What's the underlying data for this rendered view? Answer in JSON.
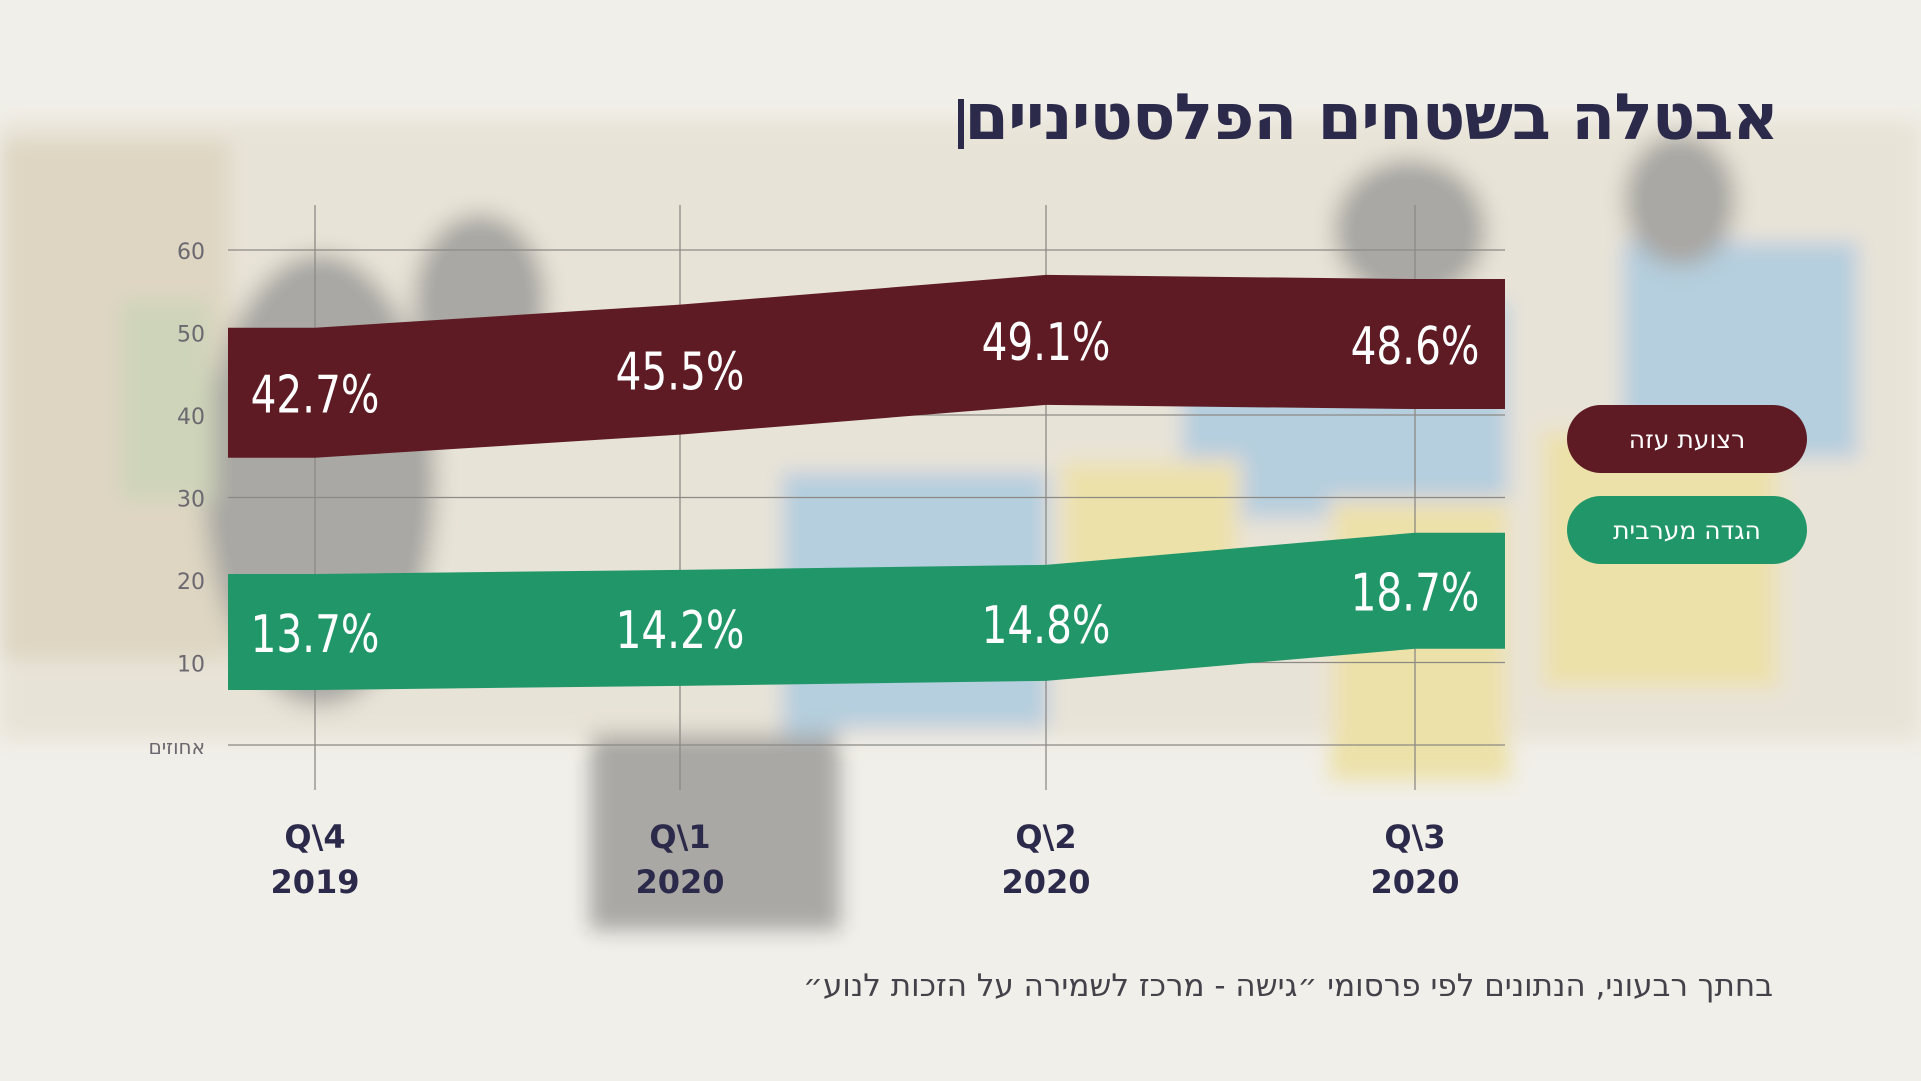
{
  "title": "אבטלה בשטחים הפלסטיניים",
  "source_note": "בחתך רבעוני, הנתונים לפי פרסומי ״גישה - מרכז לשמירה על הזכות לנוע״",
  "colors": {
    "gaza": "#5e1b24",
    "west_bank": "#219769",
    "title": "#2c2a4a",
    "axis_text": "#6b6870",
    "background": "#f1efe9"
  },
  "legend": [
    {
      "label": "רצועת עזה",
      "color": "#5e1b24"
    },
    {
      "label": "הגדה מערבית",
      "color": "#219769"
    }
  ],
  "chart_data": {
    "type": "area",
    "y_unit_label": "אחוזים",
    "yticks": [
      "10",
      "20",
      "30",
      "40",
      "50",
      "60"
    ],
    "ylim": [
      0,
      60
    ],
    "grid": true,
    "legend_position": "right",
    "x": [
      {
        "line1": "Q\\4",
        "line2": "2019"
      },
      {
        "line1": "Q\\1",
        "line2": "2020"
      },
      {
        "line1": "Q\\2",
        "line2": "2020"
      },
      {
        "line1": "Q\\3",
        "line2": "2020"
      }
    ],
    "series": [
      {
        "name": "רצועת עזה",
        "values": [
          42.7,
          45.5,
          49.1,
          48.6
        ],
        "labels": [
          "42.7%",
          "45.5%",
          "49.1%",
          "48.6%"
        ]
      },
      {
        "name": "הגדה מערבית",
        "values": [
          13.7,
          14.2,
          14.8,
          18.7
        ],
        "labels": [
          "13.7%",
          "14.2%",
          "14.8%",
          "18.7%"
        ]
      }
    ]
  }
}
